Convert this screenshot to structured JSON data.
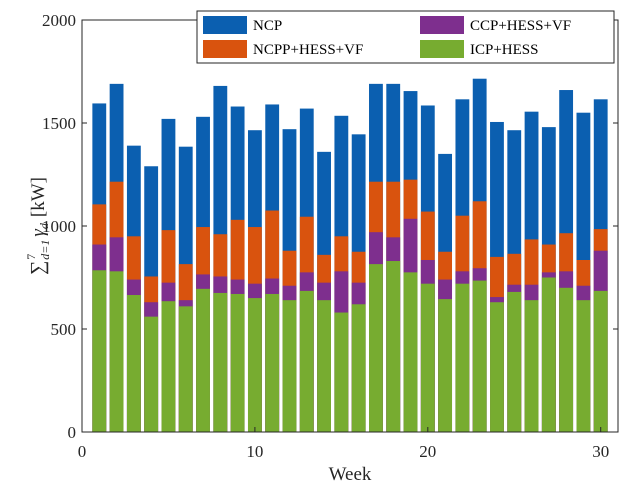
{
  "chart_data": {
    "type": "bar",
    "stacking": "overlay",
    "xlabel": "Week",
    "ylabel_parts": [
      "∑",
      "7",
      "d=1",
      "γ",
      "d",
      "[kW]"
    ],
    "xlim": [
      0,
      31
    ],
    "ylim": [
      0,
      2000
    ],
    "xticks": [
      0,
      10,
      20,
      30
    ],
    "yticks": [
      0,
      500,
      1000,
      1500,
      2000
    ],
    "legend_location": "top-right",
    "x": [
      1,
      2,
      3,
      4,
      5,
      6,
      7,
      8,
      9,
      10,
      11,
      12,
      13,
      14,
      15,
      16,
      17,
      18,
      19,
      20,
      21,
      22,
      23,
      24,
      25,
      26,
      27,
      28,
      29,
      30
    ],
    "series": [
      {
        "name": "NCP",
        "color": "#0b5fb0",
        "values": [
          1595,
          1690,
          1390,
          1290,
          1520,
          1385,
          1530,
          1680,
          1580,
          1465,
          1590,
          1470,
          1570,
          1360,
          1535,
          1445,
          1690,
          1690,
          1655,
          1585,
          1350,
          1615,
          1715,
          1505,
          1465,
          1555,
          1480,
          1660,
          1550,
          1615
        ]
      },
      {
        "name": "NCPP+HESS+VF",
        "color": "#d9530e",
        "values": [
          1105,
          1215,
          950,
          755,
          980,
          815,
          995,
          960,
          1030,
          995,
          1075,
          880,
          1045,
          860,
          950,
          875,
          1215,
          1215,
          1225,
          1070,
          875,
          1050,
          1120,
          850,
          865,
          935,
          910,
          965,
          835,
          985
        ]
      },
      {
        "name": "CCP+HESS+VF",
        "color": "#7e2f8e",
        "values": [
          910,
          945,
          740,
          630,
          725,
          640,
          765,
          755,
          740,
          720,
          745,
          710,
          775,
          725,
          780,
          725,
          970,
          945,
          1035,
          835,
          740,
          780,
          795,
          655,
          715,
          715,
          775,
          780,
          710,
          880
        ]
      },
      {
        "name": "ICP+HESS",
        "color": "#77ac30",
        "values": [
          785,
          780,
          665,
          560,
          635,
          610,
          695,
          675,
          670,
          650,
          670,
          640,
          685,
          640,
          580,
          620,
          815,
          830,
          775,
          720,
          645,
          720,
          735,
          630,
          680,
          640,
          750,
          700,
          640,
          685
        ]
      }
    ]
  }
}
